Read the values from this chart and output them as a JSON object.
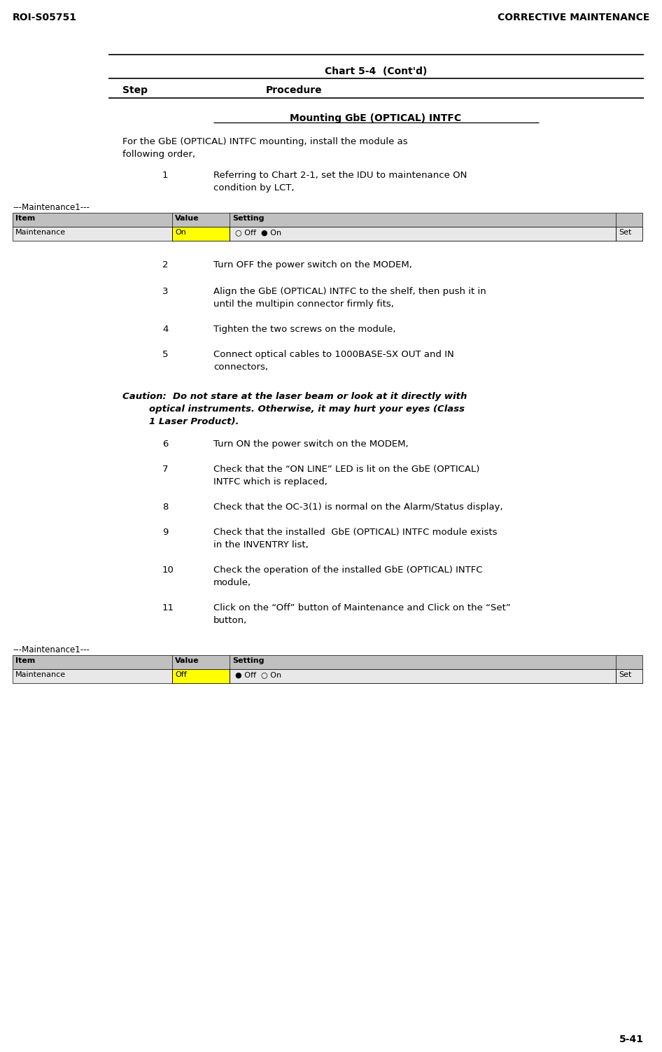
{
  "header_left": "ROI-S05751",
  "header_right": "CORRECTIVE MAINTENANCE",
  "chart_title": "Chart 5-4  (Cont'd)",
  "col_step": "Step",
  "col_procedure": "Procedure",
  "section_title": "Mounting GbE (OPTICAL) INTFC",
  "intro_line1": "For the GbE (OPTICAL) INTFC mounting, install the module as",
  "intro_line2": "following order,",
  "maintenance_label": "---Maintenance1---",
  "tbl_headers": [
    "Item",
    "Value",
    "Setting"
  ],
  "tbl1_row": [
    "Maintenance",
    "On",
    "○ Off  ● On",
    "Set"
  ],
  "tbl2_row": [
    "Maintenance",
    "Off",
    "● Off  ○ On",
    "Set"
  ],
  "caution_line1": "Caution:  Do not stare at the laser beam or look at it directly with",
  "caution_line2": "optical instruments. Otherwise, it may hurt your eyes (Class",
  "caution_line3": "1 Laser Product).",
  "steps_before_caution": [
    {
      "num": "1",
      "lines": [
        "Referring to Chart 2-1, set the IDU to maintenance ON",
        "condition by LCT,"
      ]
    },
    {
      "num": "2",
      "lines": [
        "Turn OFF the power switch on the MODEM,"
      ]
    },
    {
      "num": "3",
      "lines": [
        "Align the GbE (OPTICAL) INTFC to the shelf, then push it in",
        "until the multipin connector firmly fits,"
      ]
    },
    {
      "num": "4",
      "lines": [
        "Tighten the two screws on the module,"
      ]
    },
    {
      "num": "5",
      "lines": [
        "Connect optical cables to 1000BASE-SX OUT and IN",
        "connectors,"
      ]
    }
  ],
  "steps_after_caution": [
    {
      "num": "6",
      "lines": [
        "Turn ON the power switch on the MODEM,"
      ]
    },
    {
      "num": "7",
      "lines": [
        "Check that the “ON LINE” LED is lit on the GbE (OPTICAL)",
        "INTFC which is replaced,"
      ]
    },
    {
      "num": "8",
      "lines": [
        "Check that the OC-3(1) is normal on the Alarm/Status display,"
      ]
    },
    {
      "num": "9",
      "lines": [
        "Check that the installed  GbE (OPTICAL) INTFC module exists",
        "in the INVENTRY list,"
      ]
    },
    {
      "num": "10",
      "lines": [
        "Check the operation of the installed GbE (OPTICAL) INTFC",
        "module,"
      ]
    },
    {
      "num": "11",
      "lines": [
        "Click on the “Off” button of Maintenance and Click on the “Set”",
        "button,"
      ]
    }
  ],
  "page_number": "5-41",
  "bg_color": "#ffffff",
  "tbl_hdr_bg": "#c0c0c0",
  "tbl_row_bg": "#e8e8e8",
  "tbl_val_bg": "#ffff00"
}
